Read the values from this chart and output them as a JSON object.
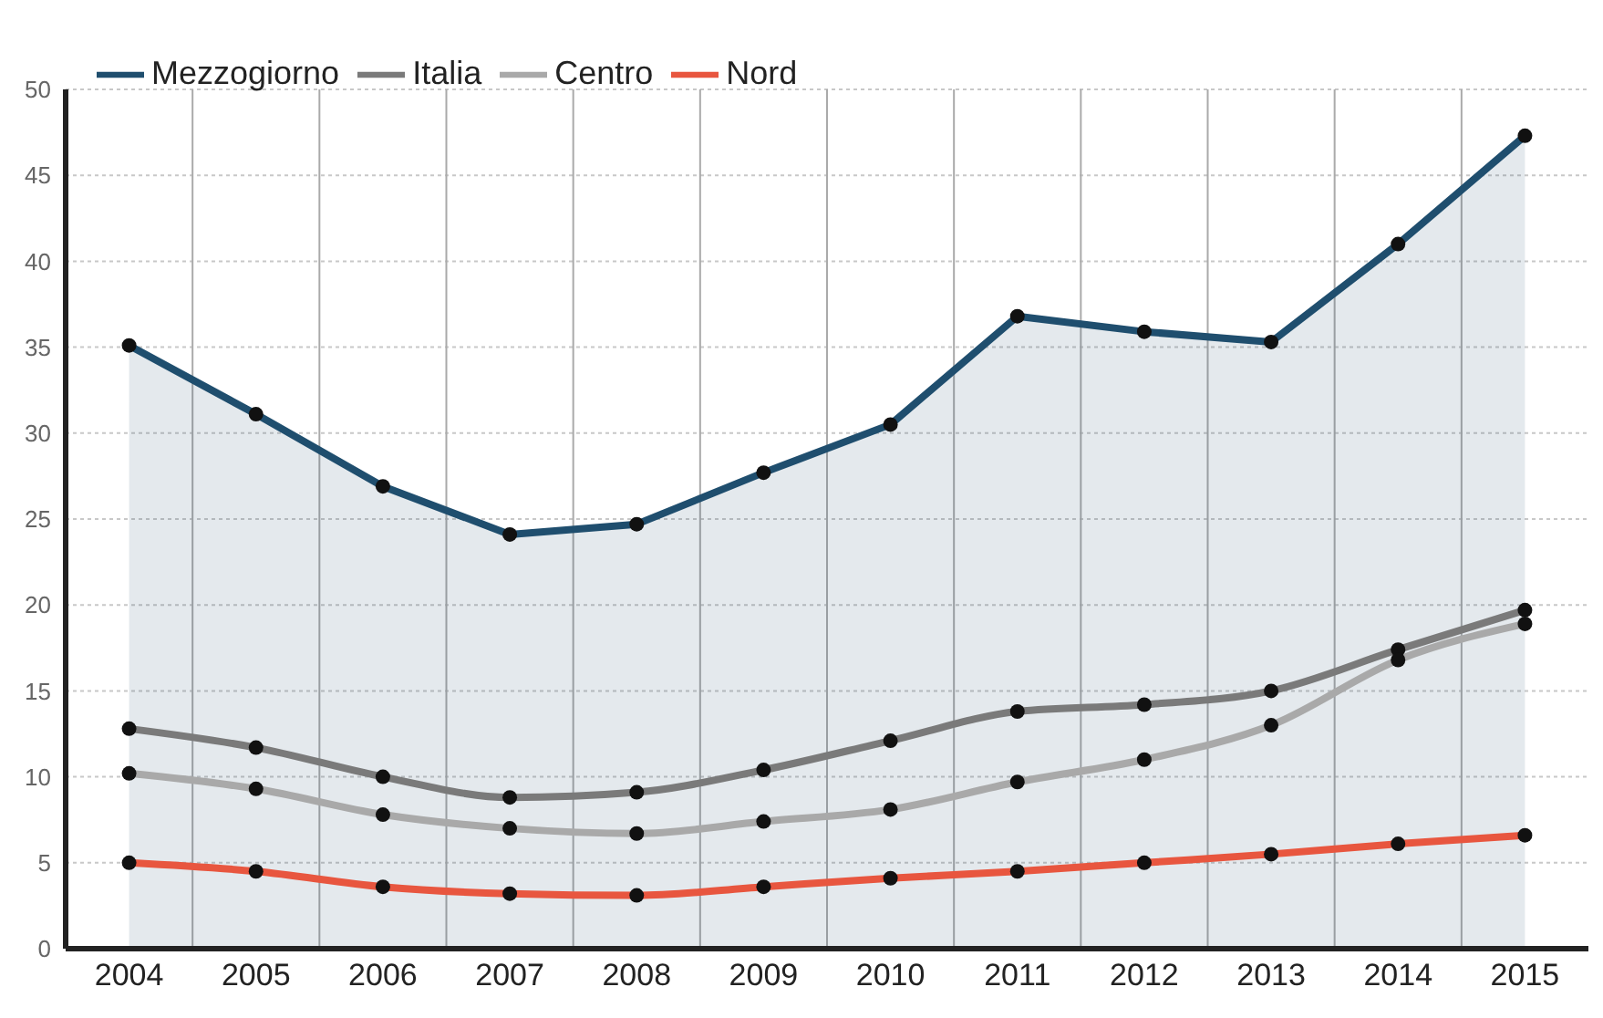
{
  "chart_data": {
    "type": "line",
    "categories": [
      "2004",
      "2005",
      "2006",
      "2007",
      "2008",
      "2009",
      "2010",
      "2011",
      "2012",
      "2013",
      "2014",
      "2015"
    ],
    "series": [
      {
        "name": "Mezzogiorno",
        "type": "area",
        "color": "#1f4e6e",
        "values": [
          35.1,
          31.1,
          26.9,
          24.1,
          24.7,
          27.7,
          30.5,
          36.8,
          35.9,
          35.3,
          41.0,
          47.3
        ]
      },
      {
        "name": "Italia",
        "color": "#7a7a7a",
        "values": [
          12.8,
          11.7,
          10.0,
          8.8,
          9.1,
          10.4,
          12.1,
          13.8,
          14.2,
          15.0,
          17.4,
          19.7
        ]
      },
      {
        "name": "Centro",
        "color": "#a9a9a9",
        "values": [
          10.2,
          9.3,
          7.8,
          7.0,
          6.7,
          7.4,
          8.1,
          9.7,
          11.0,
          13.0,
          16.8,
          18.9
        ]
      },
      {
        "name": "Nord",
        "color": "#e8563f",
        "values": [
          5.0,
          4.5,
          3.6,
          3.2,
          3.1,
          3.6,
          4.1,
          4.5,
          5.0,
          5.5,
          6.1,
          6.6
        ]
      }
    ],
    "ylim": [
      0,
      50
    ],
    "yticks": [
      0,
      5,
      10,
      15,
      20,
      25,
      30,
      35,
      40,
      45,
      50
    ],
    "grid": true,
    "legend": "top left",
    "marker": "circle",
    "line_style": "solid"
  }
}
